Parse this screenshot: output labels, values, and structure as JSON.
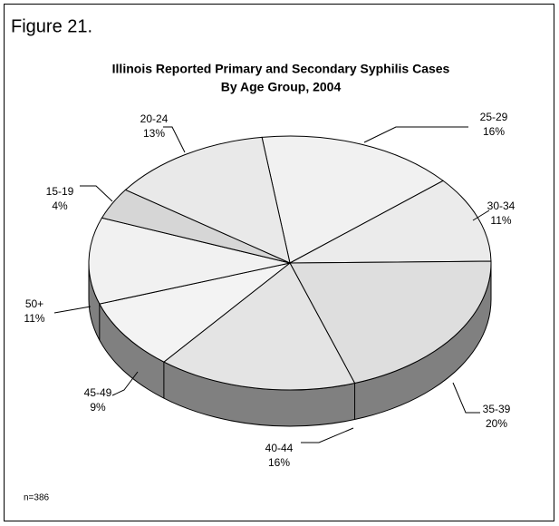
{
  "figure_label": "Figure 21.",
  "chart_data": {
    "type": "pie3d",
    "title": "Illinois Reported Primary and Secondary Syphilis Cases",
    "subtitle": "By Age Group, 2004",
    "categories": [
      "25-29",
      "30-34",
      "35-39",
      "40-44",
      "45-49",
      "50+",
      "15-19",
      "20-24"
    ],
    "values": [
      16,
      11,
      20,
      16,
      9,
      11,
      4,
      13
    ],
    "value_labels": [
      "16%",
      "11%",
      "20%",
      "16%",
      "9%",
      "11%",
      "4%",
      "13%"
    ],
    "colors": [
      "#f1f1f1",
      "#ebebeb",
      "#dedede",
      "#e4e4e4",
      "#f3f3f3",
      "#f1f1f1",
      "#d6d6d6",
      "#e9e9e9"
    ],
    "side_color": "#808080"
  },
  "note": "n=386"
}
